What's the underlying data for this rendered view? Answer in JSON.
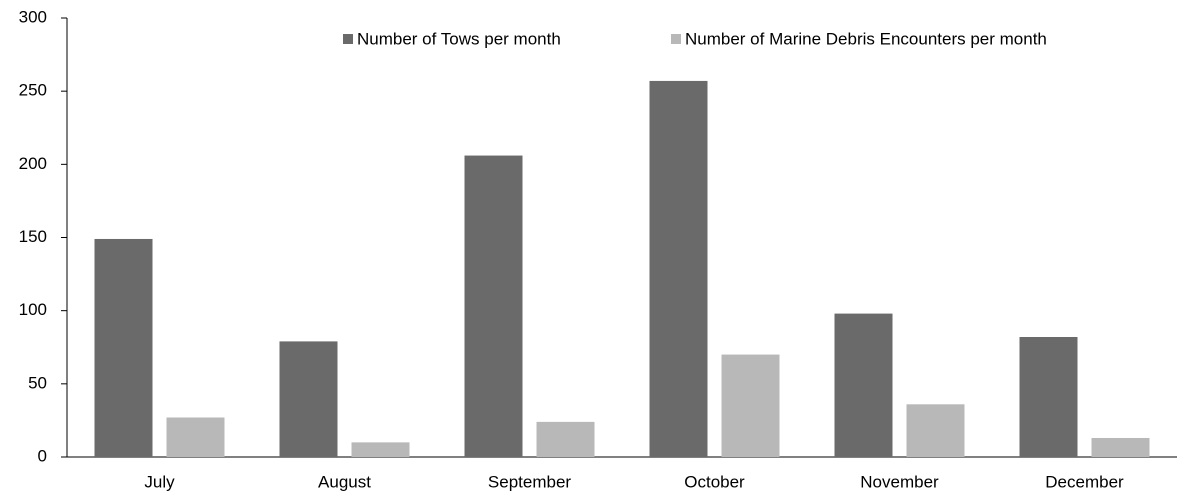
{
  "chart_data": {
    "type": "bar",
    "categories": [
      "July",
      "August",
      "September",
      "October",
      "November",
      "December"
    ],
    "series": [
      {
        "name": "Number of Tows per month",
        "color": "#6a6a6a",
        "values": [
          149,
          79,
          206,
          257,
          98,
          82
        ]
      },
      {
        "name": "Number of Marine Debris Encounters per month",
        "color": "#b8b8b8",
        "values": [
          27,
          10,
          24,
          70,
          36,
          13
        ]
      }
    ],
    "ylim": [
      0,
      300
    ],
    "yticks": [
      0,
      50,
      100,
      150,
      200,
      250,
      300
    ],
    "grid": false,
    "legend": "top"
  }
}
